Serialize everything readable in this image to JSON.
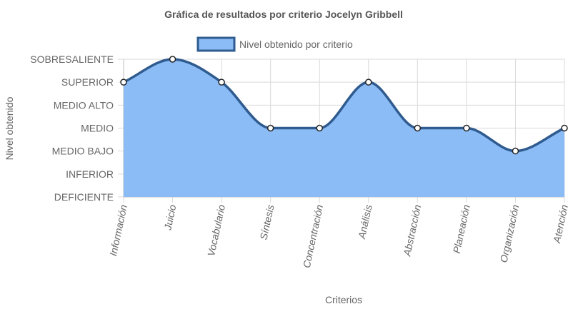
{
  "chart_data": {
    "type": "area",
    "title": "Gráfica de resultados por criterio Jocelyn Gribbell",
    "xlabel": "Criterios",
    "ylabel": "Nivel obtenido",
    "levels": [
      "DEFICIENTE",
      "INFERIOR",
      "MEDIO BAJO",
      "MEDIO",
      "MEDIO ALTO",
      "SUPERIOR",
      "SOBRESALIENTE"
    ],
    "categories": [
      "Información",
      "Juicio",
      "Vocabulario",
      "Síntesis",
      "Concentración",
      "Análisis",
      "Abstracción",
      "Planeación",
      "Organización",
      "Atención"
    ],
    "series": [
      {
        "name": "Nivel obtenido por criterio",
        "values": [
          "SUPERIOR",
          "SOBRESALIENTE",
          "SUPERIOR",
          "MEDIO",
          "MEDIO",
          "SUPERIOR",
          "MEDIO",
          "MEDIO",
          "MEDIO BAJO",
          "MEDIO"
        ]
      }
    ],
    "legend_position": "top",
    "grid": true,
    "colors": {
      "fill": "#8bbcf6",
      "line": "#2f5b8f",
      "grid": "#d9d9d9",
      "axis_text": "#666666",
      "title_text": "#555555"
    }
  }
}
